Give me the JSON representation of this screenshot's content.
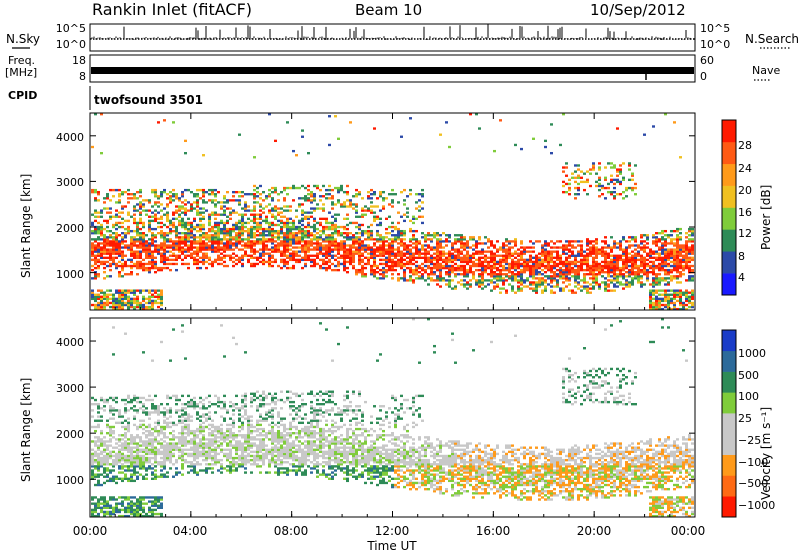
{
  "header": {
    "title": "Rankin Inlet (fitACF)",
    "beam": "Beam 10",
    "date": "10/Sep/2012"
  },
  "side_labels": {
    "nsky": "N.Sky",
    "freq_line1": "Freq.",
    "freq_line2": "[MHz]",
    "cpid": "CPID",
    "nsearch": "N.Search",
    "nave": "Nave"
  },
  "cpid_text": "twofsound 3501",
  "chart_data": [
    {
      "type": "line",
      "name_label": "N.Sky / N.Search",
      "yticks_left": [
        "10^5",
        "10^0"
      ],
      "yticks_right": [
        "10^5",
        "10^0"
      ],
      "scale": "log"
    },
    {
      "type": "line",
      "name_label": "Freq / Nave",
      "yticks_left": [
        "18",
        "8"
      ],
      "yticks_right": [
        "60",
        "0"
      ],
      "ylim_left": [
        8,
        18
      ],
      "ylim_right": [
        0,
        60
      ]
    },
    {
      "type": "heatmap",
      "quantity": "Power",
      "colorbar_label": "Power [dB]",
      "colorbar_ticks": [
        "28",
        "24",
        "20",
        "16",
        "12",
        "8",
        "4"
      ],
      "colors": [
        "#1a1aff",
        "#2c4aa8",
        "#2e8b57",
        "#7fcc3a",
        "#f0c020",
        "#ff9a1a",
        "#ff5a14",
        "#ff1a00"
      ],
      "ylabel": "Slant Range [km]",
      "yticks": [
        "4000",
        "3000",
        "2000",
        "1000"
      ],
      "ylim": [
        180,
        4500
      ]
    },
    {
      "type": "heatmap",
      "quantity": "Velocity",
      "colorbar_label": "Velocity [m s⁻¹]",
      "colorbar_ticks": [
        "1000",
        "500",
        "100",
        "25",
        "−25",
        "−100",
        "−500",
        "−1000"
      ],
      "colors": [
        "#1a3cc8",
        "#2c6a9a",
        "#2e8b57",
        "#7fcc3a",
        "#c8c8c8",
        "#c8c8c8",
        "#ff9a1a",
        "#ff6a14",
        "#ff1a00"
      ],
      "ylabel": "Slant Range [km]",
      "yticks": [
        "4000",
        "3000",
        "2000",
        "1000"
      ],
      "ylim": [
        180,
        4500
      ],
      "xlabel": "Time UT",
      "xticks": [
        "00:00",
        "04:00",
        "08:00",
        "12:00",
        "16:00",
        "20:00",
        "00:00"
      ]
    }
  ]
}
